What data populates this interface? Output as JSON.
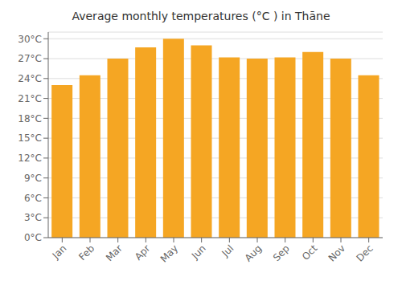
{
  "chart_data": {
    "type": "bar",
    "title": "Average monthly temperatures (°C ) in Thāne",
    "categories": [
      "Jan",
      "Feb",
      "Mar",
      "Apr",
      "May",
      "Jun",
      "Jul",
      "Aug",
      "Sep",
      "Oct",
      "Nov",
      "Dec"
    ],
    "values": [
      23.0,
      24.5,
      27.0,
      28.7,
      30.0,
      29.0,
      27.2,
      27.0,
      27.2,
      28.0,
      27.0,
      24.5
    ],
    "color": "#F5A623",
    "ylim": [
      0,
      31
    ],
    "yticks": [
      {
        "value": 0,
        "label": "0°C"
      },
      {
        "value": 3,
        "label": "3°C"
      },
      {
        "value": 6,
        "label": "6°C"
      },
      {
        "value": 9,
        "label": "9°C"
      },
      {
        "value": 12,
        "label": "12°C"
      },
      {
        "value": 15,
        "label": "15°C"
      },
      {
        "value": 18,
        "label": "18°C"
      },
      {
        "value": 21,
        "label": "21°C"
      },
      {
        "value": 24,
        "label": "24°C"
      },
      {
        "value": 27,
        "label": "27°C"
      },
      {
        "value": 30,
        "label": "30°C"
      }
    ],
    "grid": true
  }
}
